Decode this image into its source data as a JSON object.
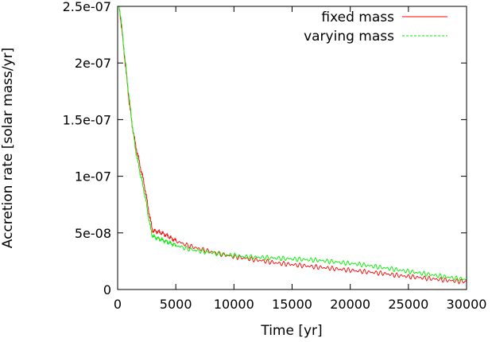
{
  "chart_data": {
    "type": "line",
    "title": "",
    "xlabel": "Time [yr]",
    "ylabel": "Accretion rate [solar mass/yr]",
    "xlim": [
      0,
      30000
    ],
    "ylim": [
      0,
      2.5e-07
    ],
    "grid": false,
    "legend_position": "top-right",
    "xticks": [
      0,
      5000,
      10000,
      15000,
      20000,
      25000,
      30000
    ],
    "xtick_labels": [
      "0",
      "5000",
      "10000",
      "15000",
      "20000",
      "25000",
      "30000"
    ],
    "yticks": [
      0,
      5e-08,
      1e-07,
      1.5e-07,
      2e-07,
      2.5e-07
    ],
    "ytick_labels": [
      "0",
      "5e-08",
      "1e-07",
      "1.5e-07",
      "2e-07",
      "2.5e-07"
    ],
    "series": [
      {
        "name": "fixed mass",
        "color": "#ff0000",
        "dash": "solid",
        "x": [
          0,
          250,
          500,
          750,
          1000,
          1250,
          1500,
          1750,
          2000,
          2250,
          2500,
          2750,
          3000,
          3500,
          4000,
          4500,
          5000,
          6000,
          7000,
          8000,
          9000,
          10000,
          11000,
          12000,
          13000,
          14000,
          15000,
          16000,
          17000,
          18000,
          19000,
          20000,
          21000,
          22000,
          23000,
          24000,
          25000,
          26000,
          27000,
          28000,
          29000,
          30000
        ],
        "y": [
          2.6e-07,
          2.4e-07,
          2.15e-07,
          1.9e-07,
          1.65e-07,
          1.45e-07,
          1.3e-07,
          1.18e-07,
          1.06e-07,
          9.5e-08,
          8e-08,
          6.5e-08,
          5.2e-08,
          5.1e-08,
          4.9e-08,
          4.6e-08,
          4.3e-08,
          3.9e-08,
          3.6e-08,
          3.35e-08,
          3.1e-08,
          2.9e-08,
          2.75e-08,
          2.6e-08,
          2.45e-08,
          2.3e-08,
          2.2e-08,
          2.1e-08,
          2e-08,
          1.9e-08,
          1.8e-08,
          1.7e-08,
          1.6e-08,
          1.5e-08,
          1.4e-08,
          1.25e-08,
          1.15e-08,
          1.05e-08,
          9.5e-09,
          8.5e-09,
          7.5e-09,
          7e-09
        ]
      },
      {
        "name": "varying mass",
        "color": "#00ee00",
        "dash": "dashed",
        "x": [
          0,
          250,
          500,
          750,
          1000,
          1250,
          1500,
          1750,
          2000,
          2250,
          2500,
          2750,
          3000,
          3500,
          4000,
          4500,
          5000,
          6000,
          7000,
          8000,
          9000,
          10000,
          11000,
          12000,
          13000,
          14000,
          15000,
          16000,
          17000,
          18000,
          19000,
          20000,
          21000,
          22000,
          23000,
          24000,
          25000,
          26000,
          27000,
          28000,
          29000,
          30000
        ],
        "y": [
          2.6e-07,
          2.42e-07,
          2.17e-07,
          1.92e-07,
          1.68e-07,
          1.46e-07,
          1.26e-07,
          1.12e-07,
          1e-07,
          8.8e-08,
          7.4e-08,
          5.8e-08,
          4.7e-08,
          4.5e-08,
          4.3e-08,
          4.1e-08,
          3.9e-08,
          3.6e-08,
          3.4e-08,
          3.25e-08,
          3.1e-08,
          3e-08,
          2.9e-08,
          2.85e-08,
          2.8e-08,
          2.75e-08,
          2.7e-08,
          2.65e-08,
          2.6e-08,
          2.5e-08,
          2.4e-08,
          2.3e-08,
          2.2e-08,
          2.05e-08,
          1.9e-08,
          1.75e-08,
          1.6e-08,
          1.45e-08,
          1.3e-08,
          1.15e-08,
          1e-08,
          9e-09
        ]
      }
    ]
  }
}
